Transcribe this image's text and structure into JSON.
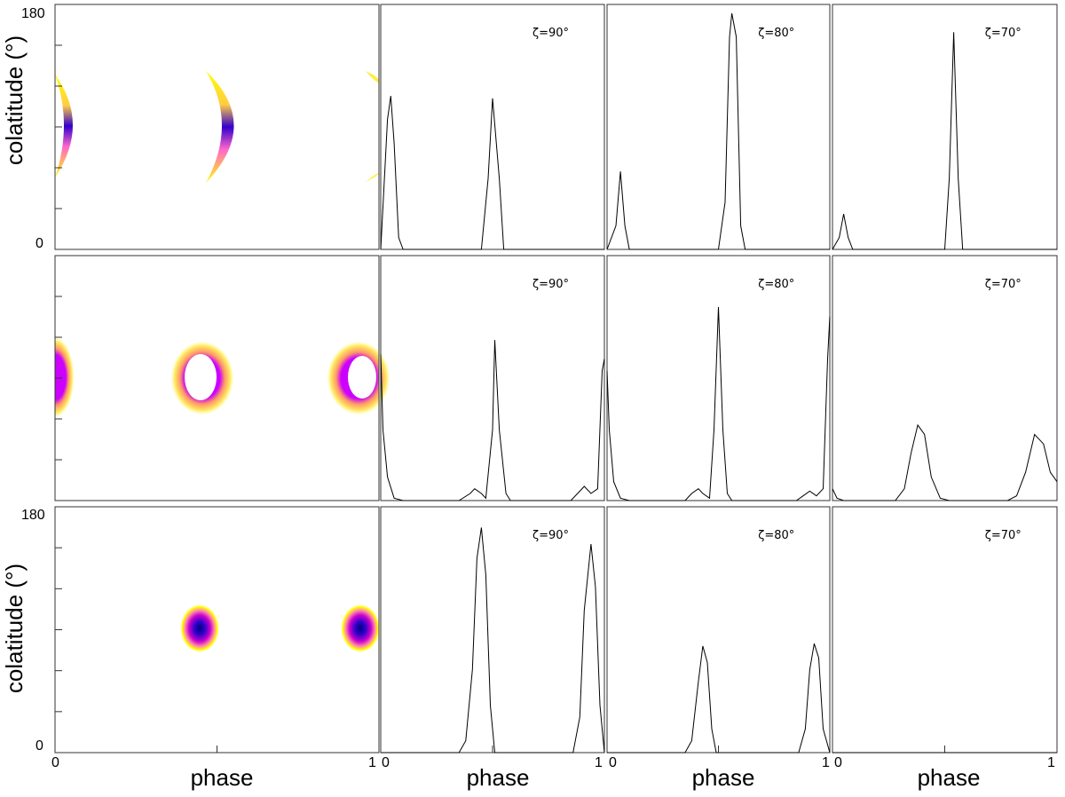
{
  "figure": {
    "ylabel": "colatitude (°)",
    "xlabel": "phase",
    "y_ticks": [
      "0",
      "180"
    ],
    "x_ticks": [
      "0",
      "1"
    ]
  },
  "chart_data": [
    {
      "type": "heatmap",
      "row": 1,
      "panel": "map",
      "xlabel": "phase",
      "ylabel": "colatitude (°)",
      "xlim": [
        0,
        1
      ],
      "ylim": [
        0,
        180
      ],
      "colormap": [
        "#ffff00",
        "#ff66cc",
        "#cc00ff",
        "#0000cc"
      ],
      "features": [
        {
          "shape": "crescent",
          "phase_center": 0.0,
          "colatitude_range": [
            48,
            126
          ]
        },
        {
          "shape": "crescent",
          "phase_center": 0.5,
          "colatitude_range": [
            49,
            130
          ]
        },
        {
          "shape": "crescent",
          "phase_center": 1.0,
          "colatitude_range": [
            48,
            126
          ]
        }
      ]
    },
    {
      "type": "line",
      "row": 1,
      "zeta": "ζ=90°",
      "xlim": [
        0,
        1
      ],
      "x": [
        0.0,
        0.03,
        0.045,
        0.06,
        0.08,
        0.1,
        0.45,
        0.48,
        0.5,
        0.53,
        0.55,
        1.0
      ],
      "y": [
        0,
        0.55,
        0.65,
        0.45,
        0.05,
        0,
        0,
        0.3,
        0.64,
        0.3,
        0,
        0
      ]
    },
    {
      "type": "line",
      "row": 1,
      "zeta": "ζ=80°",
      "xlim": [
        0,
        1
      ],
      "x": [
        0.0,
        0.04,
        0.06,
        0.08,
        0.1,
        0.5,
        0.53,
        0.55,
        0.56,
        0.58,
        0.6,
        0.62,
        1.0
      ],
      "y": [
        0,
        0.1,
        0.33,
        0.1,
        0,
        0,
        0.2,
        0.9,
        1.0,
        0.9,
        0.1,
        0,
        0
      ]
    },
    {
      "type": "line",
      "row": 1,
      "zeta": "ζ=70°",
      "xlim": [
        0,
        1
      ],
      "x": [
        0.0,
        0.03,
        0.05,
        0.07,
        0.09,
        0.5,
        0.52,
        0.54,
        0.56,
        0.58,
        1.0
      ],
      "y": [
        0,
        0.05,
        0.15,
        0.05,
        0,
        0,
        0.3,
        0.92,
        0.3,
        0,
        0
      ]
    },
    {
      "type": "heatmap",
      "row": 2,
      "panel": "map",
      "xlabel": "phase",
      "ylabel": "colatitude (°)",
      "xlim": [
        0,
        1
      ],
      "ylim": [
        0,
        180
      ],
      "colormap": [
        "#ffff00",
        "#ff66cc",
        "#cc00ff",
        "#0000cc"
      ],
      "features": [
        {
          "shape": "ring",
          "phase_center": 0.0,
          "colatitude_range": [
            65,
            115
          ]
        },
        {
          "shape": "ring",
          "phase_center": 0.45,
          "colatitude_range": [
            65,
            115
          ]
        },
        {
          "shape": "ring",
          "phase_center": 0.95,
          "colatitude_range": [
            65,
            115
          ]
        }
      ]
    },
    {
      "type": "line",
      "row": 2,
      "zeta": "ζ=90°",
      "xlim": [
        0,
        1
      ],
      "x": [
        0.0,
        0.01,
        0.03,
        0.06,
        0.1,
        0.35,
        0.4,
        0.42,
        0.45,
        0.47,
        0.5,
        0.51,
        0.53,
        0.56,
        0.58,
        0.85,
        0.89,
        0.91,
        0.94,
        0.97,
        0.99,
        1.0
      ],
      "y": [
        0.62,
        0.3,
        0.1,
        0.01,
        0,
        0,
        0.03,
        0.05,
        0.03,
        0.01,
        0.3,
        0.68,
        0.3,
        0.03,
        0,
        0,
        0.04,
        0.06,
        0.03,
        0.05,
        0.55,
        0.6
      ],
      "y_scale": "fraction of panel height"
    },
    {
      "type": "line",
      "row": 2,
      "zeta": "ζ=80°",
      "xlim": [
        0,
        1
      ],
      "x": [
        0.0,
        0.01,
        0.03,
        0.06,
        0.1,
        0.35,
        0.38,
        0.41,
        0.43,
        0.46,
        0.48,
        0.5,
        0.52,
        0.54,
        0.56,
        0.85,
        0.88,
        0.91,
        0.94,
        0.97,
        0.99,
        1.0
      ],
      "y": [
        0.55,
        0.3,
        0.08,
        0.01,
        0,
        0,
        0.03,
        0.05,
        0.03,
        0.01,
        0.3,
        0.82,
        0.3,
        0.03,
        0,
        0,
        0.02,
        0.04,
        0.02,
        0.05,
        0.6,
        0.78
      ]
    },
    {
      "type": "line",
      "row": 2,
      "zeta": "ζ=70°",
      "xlim": [
        0,
        1
      ],
      "x": [
        0.0,
        0.02,
        0.05,
        0.28,
        0.32,
        0.35,
        0.38,
        0.41,
        0.44,
        0.48,
        0.52,
        0.78,
        0.82,
        0.86,
        0.9,
        0.94,
        0.97,
        1.0
      ],
      "y": [
        0.05,
        0.01,
        0,
        0,
        0.05,
        0.2,
        0.32,
        0.28,
        0.1,
        0.01,
        0,
        0,
        0.02,
        0.12,
        0.28,
        0.24,
        0.12,
        0.08
      ]
    },
    {
      "type": "heatmap",
      "row": 3,
      "panel": "map",
      "xlabel": "phase",
      "ylabel": "colatitude (°)",
      "xlim": [
        0,
        1
      ],
      "ylim": [
        0,
        180
      ],
      "colormap": [
        "#ffff00",
        "#ff66cc",
        "#cc00ff",
        "#0000cc"
      ],
      "features": [
        {
          "shape": "spot",
          "phase_center": 0.44,
          "colatitude_range": [
            75,
            105
          ]
        },
        {
          "shape": "spot",
          "phase_center": 0.94,
          "colatitude_range": [
            75,
            105
          ]
        }
      ]
    },
    {
      "type": "line",
      "row": 3,
      "zeta": "ζ=90°",
      "xlim": [
        0,
        1
      ],
      "x": [
        0.0,
        0.35,
        0.38,
        0.41,
        0.43,
        0.45,
        0.47,
        0.49,
        0.51,
        0.86,
        0.89,
        0.91,
        0.94,
        0.96,
        0.98,
        1.0
      ],
      "y": [
        0,
        0,
        0.05,
        0.35,
        0.82,
        0.95,
        0.75,
        0.2,
        0,
        0,
        0.15,
        0.6,
        0.88,
        0.7,
        0.2,
        0
      ],
      "y_scale": "fraction of panel height"
    },
    {
      "type": "line",
      "row": 3,
      "zeta": "ζ=80°",
      "xlim": [
        0,
        1
      ],
      "x": [
        0.0,
        0.35,
        0.38,
        0.41,
        0.43,
        0.45,
        0.47,
        0.49,
        0.86,
        0.89,
        0.91,
        0.93,
        0.95,
        0.97,
        1.0
      ],
      "y": [
        0,
        0,
        0.05,
        0.3,
        0.45,
        0.38,
        0.1,
        0,
        0,
        0.1,
        0.35,
        0.46,
        0.4,
        0.1,
        0
      ]
    },
    {
      "type": "line",
      "row": 3,
      "zeta": "ζ=70°",
      "xlim": [
        0,
        1
      ],
      "x": [
        0.0,
        1.0
      ],
      "y": [
        0,
        0
      ]
    }
  ]
}
